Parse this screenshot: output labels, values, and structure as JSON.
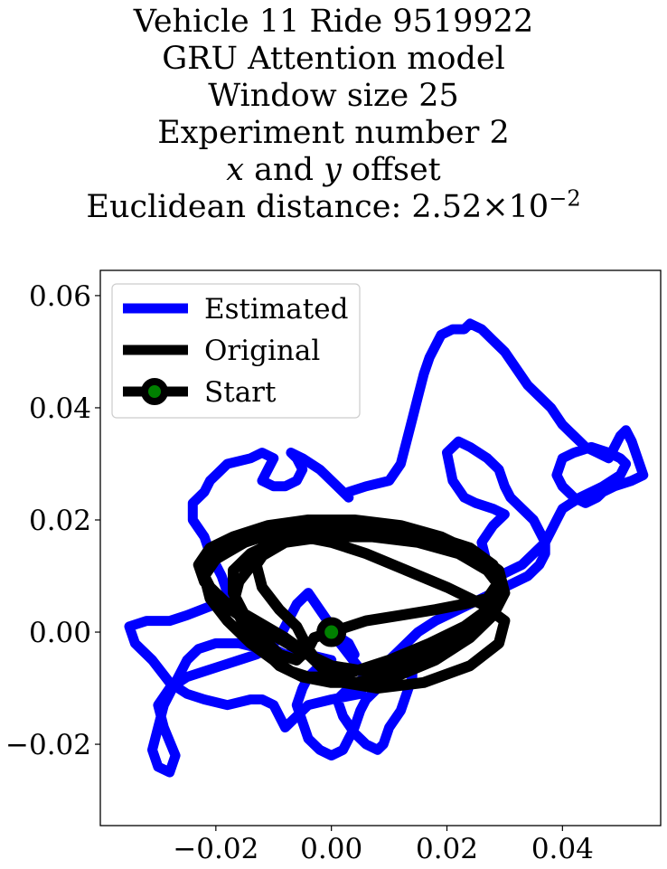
{
  "chart_data": {
    "type": "line",
    "title_lines": [
      "Vehicle 11 Ride 9519922",
      "GRU Attention model",
      "Window size 25",
      "Experiment number 2"
    ],
    "offset_line": {
      "x": "x",
      "and": "and",
      "y": "y",
      "rest": "offset"
    },
    "distance_line": {
      "prefix": "Euclidean distance: 2.52",
      "times": "×",
      "base": "10",
      "exponent": "−2"
    },
    "xlim": [
      -0.04,
      0.057
    ],
    "ylim": [
      -0.0345,
      0.0645
    ],
    "xticks": [
      {
        "value": -0.02,
        "label": "−0.02"
      },
      {
        "value": 0.0,
        "label": "0.00"
      },
      {
        "value": 0.02,
        "label": "0.02"
      },
      {
        "value": 0.04,
        "label": "0.04"
      }
    ],
    "yticks": [
      {
        "value": -0.02,
        "label": "−0.02"
      },
      {
        "value": 0.0,
        "label": "0.00"
      },
      {
        "value": 0.02,
        "label": "0.02"
      },
      {
        "value": 0.04,
        "label": "0.04"
      },
      {
        "value": 0.06,
        "label": "0.06"
      }
    ],
    "grid": false,
    "legend_position": "upper-left",
    "legend": [
      {
        "label": "Estimated",
        "color": "#0000ff",
        "marker": false
      },
      {
        "label": "Original",
        "color": "#000000",
        "marker": false
      },
      {
        "label": "Start",
        "color": "#000000",
        "marker": true,
        "marker_face": "#008000"
      }
    ],
    "start": {
      "x": 0.0,
      "y": 0.0
    },
    "series": [
      {
        "name": "Estimated",
        "color": "#0000ff",
        "x": [
          0.0,
          0.003,
          0.006,
          0.005,
          0.0,
          -0.004,
          -0.006,
          -0.008,
          -0.01,
          -0.012,
          -0.014,
          -0.018,
          -0.022,
          -0.025,
          -0.028,
          -0.031,
          -0.034,
          -0.035,
          -0.032,
          -0.028,
          -0.025,
          -0.02,
          -0.018,
          -0.019,
          -0.021,
          -0.022,
          -0.024,
          -0.024,
          -0.022,
          -0.021,
          -0.02,
          -0.018,
          -0.014,
          -0.012,
          -0.01,
          -0.011,
          -0.012,
          -0.01,
          -0.008,
          -0.006,
          -0.005,
          -0.006,
          -0.007,
          -0.005,
          -0.002,
          0.0,
          0.002,
          0.003,
          0.003,
          0.006,
          0.01,
          0.012,
          0.013,
          0.014,
          0.015,
          0.016,
          0.017,
          0.018,
          0.019,
          0.021,
          0.023,
          0.024,
          0.026,
          0.028,
          0.03,
          0.032,
          0.034,
          0.036,
          0.038,
          0.04,
          0.042,
          0.044,
          0.046,
          0.048,
          0.05,
          0.051,
          0.052,
          0.054,
          0.052,
          0.049,
          0.047,
          0.046,
          0.044,
          0.042,
          0.04,
          0.039,
          0.04,
          0.042,
          0.045,
          0.048,
          0.05,
          0.051,
          0.05,
          0.047,
          0.043,
          0.04,
          0.039,
          0.038,
          0.037,
          0.035,
          0.033,
          0.031,
          0.029,
          0.028,
          0.027,
          0.026,
          0.028,
          0.03,
          0.028,
          0.025,
          0.023,
          0.021,
          0.02,
          0.022,
          0.024,
          0.027,
          0.029,
          0.03,
          0.031,
          0.033,
          0.035,
          0.036,
          0.037,
          0.037,
          0.036,
          0.034,
          0.03,
          0.026,
          0.022,
          0.018,
          0.015,
          0.012,
          0.009,
          0.006,
          0.003,
          0.001,
          0.002,
          0.004,
          0.006,
          0.008,
          0.009,
          0.01,
          0.012,
          0.013,
          0.014,
          0.014,
          0.013,
          0.011,
          0.009,
          0.008,
          0.007,
          0.006,
          0.005,
          0.004,
          0.003,
          0.002,
          0.0,
          -0.002,
          -0.004,
          -0.005,
          -0.006,
          -0.005,
          -0.004,
          -0.002,
          0.0,
          -0.004,
          -0.008,
          -0.01,
          -0.012,
          -0.016,
          -0.02,
          -0.023,
          -0.025,
          -0.027,
          -0.029,
          -0.03,
          -0.031,
          -0.03,
          -0.028,
          -0.027,
          -0.029,
          -0.03,
          -0.028,
          -0.025,
          -0.022,
          -0.019,
          -0.016,
          -0.013,
          -0.011,
          -0.009,
          -0.008,
          -0.007,
          -0.006,
          -0.004,
          -0.002,
          0.0,
          0.002,
          0.004,
          0.003,
          0.0
        ],
        "y": [
          0.0,
          -0.004,
          -0.008,
          -0.011,
          -0.012,
          -0.013,
          -0.015,
          -0.017,
          -0.013,
          -0.012,
          -0.012,
          -0.013,
          -0.012,
          -0.011,
          -0.009,
          -0.005,
          -0.002,
          0.001,
          0.002,
          0.002,
          0.003,
          0.005,
          0.007,
          0.01,
          0.014,
          0.017,
          0.02,
          0.023,
          0.025,
          0.027,
          0.028,
          0.03,
          0.031,
          0.032,
          0.031,
          0.029,
          0.027,
          0.026,
          0.026,
          0.027,
          0.029,
          0.031,
          0.032,
          0.031,
          0.029,
          0.027,
          0.025,
          0.024,
          0.025,
          0.026,
          0.027,
          0.03,
          0.034,
          0.038,
          0.042,
          0.046,
          0.049,
          0.051,
          0.053,
          0.054,
          0.054,
          0.055,
          0.054,
          0.052,
          0.05,
          0.047,
          0.044,
          0.042,
          0.04,
          0.037,
          0.035,
          0.033,
          0.032,
          0.031,
          0.035,
          0.036,
          0.034,
          0.028,
          0.027,
          0.026,
          0.025,
          0.024,
          0.023,
          0.024,
          0.026,
          0.028,
          0.031,
          0.032,
          0.033,
          0.032,
          0.031,
          0.03,
          0.028,
          0.026,
          0.024,
          0.022,
          0.02,
          0.018,
          0.016,
          0.014,
          0.012,
          0.011,
          0.01,
          0.01,
          0.012,
          0.016,
          0.019,
          0.021,
          0.022,
          0.023,
          0.024,
          0.027,
          0.032,
          0.034,
          0.033,
          0.031,
          0.029,
          0.026,
          0.024,
          0.022,
          0.02,
          0.018,
          0.016,
          0.014,
          0.012,
          0.01,
          0.008,
          0.006,
          0.004,
          0.002,
          0.0,
          -0.003,
          -0.006,
          -0.008,
          -0.01,
          -0.012,
          -0.015,
          -0.018,
          -0.02,
          -0.021,
          -0.02,
          -0.017,
          -0.014,
          -0.011,
          -0.008,
          -0.006,
          -0.005,
          -0.006,
          -0.008,
          -0.01,
          -0.011,
          -0.012,
          -0.014,
          -0.017,
          -0.019,
          -0.021,
          -0.022,
          -0.021,
          -0.019,
          -0.016,
          -0.013,
          -0.01,
          -0.008,
          -0.006,
          -0.005,
          -0.004,
          -0.004,
          -0.003,
          -0.003,
          -0.002,
          -0.002,
          -0.003,
          -0.005,
          -0.009,
          -0.013,
          -0.017,
          -0.021,
          -0.024,
          -0.025,
          -0.022,
          -0.017,
          -0.013,
          -0.01,
          -0.008,
          -0.007,
          -0.006,
          -0.005,
          -0.004,
          -0.003,
          -0.001,
          0.001,
          0.003,
          0.005,
          0.007,
          0.004,
          0.001,
          -0.002,
          -0.004,
          -0.002,
          0.0
        ]
      },
      {
        "name": "Original",
        "color": "#000000",
        "x": [
          0.0,
          0.006,
          0.012,
          0.018,
          0.023,
          0.027,
          0.029,
          0.028,
          0.024,
          0.018,
          0.01,
          0.002,
          -0.006,
          -0.013,
          -0.018,
          -0.021,
          -0.022,
          -0.02,
          -0.016,
          -0.011,
          -0.006,
          0.0,
          0.006,
          0.012,
          0.018,
          0.023,
          0.027,
          0.03,
          0.029,
          0.025,
          0.019,
          0.012,
          0.004,
          -0.004,
          -0.011,
          -0.017,
          -0.021,
          -0.023,
          -0.022,
          -0.018,
          -0.013,
          -0.008,
          -0.004,
          -0.001,
          0.004,
          0.011,
          0.018,
          0.024,
          0.028,
          0.03,
          0.027,
          0.022,
          0.015,
          0.007,
          -0.001,
          -0.008,
          -0.013,
          -0.016,
          -0.017,
          -0.015,
          -0.012,
          -0.009,
          -0.005,
          0.0,
          0.005,
          0.011,
          0.016,
          0.021,
          0.025,
          0.028,
          0.029,
          0.026,
          0.021,
          0.014,
          0.006,
          -0.002,
          -0.009,
          -0.015,
          -0.02,
          -0.022,
          -0.021,
          -0.018,
          -0.014,
          -0.01,
          -0.007,
          -0.004,
          -0.001,
          0.004,
          0.01,
          0.017,
          0.023,
          0.027,
          0.029,
          0.027,
          0.022,
          0.015,
          0.008,
          0.001,
          -0.006,
          -0.011,
          -0.013,
          -0.012,
          -0.009,
          -0.006,
          -0.004,
          -0.006,
          -0.009,
          -0.012,
          -0.015,
          -0.017,
          -0.017,
          -0.014,
          -0.01,
          -0.005,
          0.0,
          0.006,
          0.013,
          0.02,
          0.026,
          0.03,
          0.029,
          0.024,
          0.016,
          0.008,
          0.002,
          -0.002,
          -0.004,
          -0.003,
          0.0
        ],
        "y": [
          0.0,
          0.002,
          0.003,
          0.004,
          0.005,
          0.006,
          0.009,
          0.012,
          0.015,
          0.017,
          0.018,
          0.019,
          0.019,
          0.018,
          0.016,
          0.013,
          0.01,
          0.006,
          0.003,
          0.0,
          -0.003,
          -0.006,
          -0.007,
          -0.005,
          -0.002,
          0.001,
          0.004,
          0.007,
          0.011,
          0.014,
          0.017,
          0.019,
          0.02,
          0.02,
          0.019,
          0.017,
          0.015,
          0.012,
          0.009,
          0.005,
          0.002,
          -0.001,
          -0.004,
          -0.007,
          -0.009,
          -0.008,
          -0.005,
          -0.001,
          0.003,
          0.007,
          0.011,
          0.014,
          0.016,
          0.017,
          0.017,
          0.016,
          0.013,
          0.009,
          0.005,
          0.001,
          -0.003,
          -0.006,
          -0.008,
          -0.009,
          -0.009,
          -0.007,
          -0.004,
          -0.001,
          0.002,
          0.005,
          0.009,
          0.013,
          0.016,
          0.018,
          0.019,
          0.019,
          0.018,
          0.016,
          0.013,
          0.01,
          0.006,
          0.002,
          -0.002,
          -0.005,
          -0.007,
          -0.008,
          -0.008,
          -0.007,
          -0.005,
          -0.002,
          0.001,
          0.004,
          0.008,
          0.012,
          0.015,
          0.017,
          0.018,
          0.018,
          0.017,
          0.015,
          0.012,
          0.008,
          0.004,
          0.001,
          -0.003,
          -0.005,
          -0.004,
          -0.001,
          0.003,
          0.007,
          0.011,
          0.014,
          0.016,
          0.017,
          0.016,
          0.014,
          0.011,
          0.008,
          0.005,
          0.002,
          -0.002,
          -0.006,
          -0.009,
          -0.01,
          -0.009,
          -0.006,
          -0.003,
          -0.001,
          0.0
        ]
      }
    ]
  }
}
